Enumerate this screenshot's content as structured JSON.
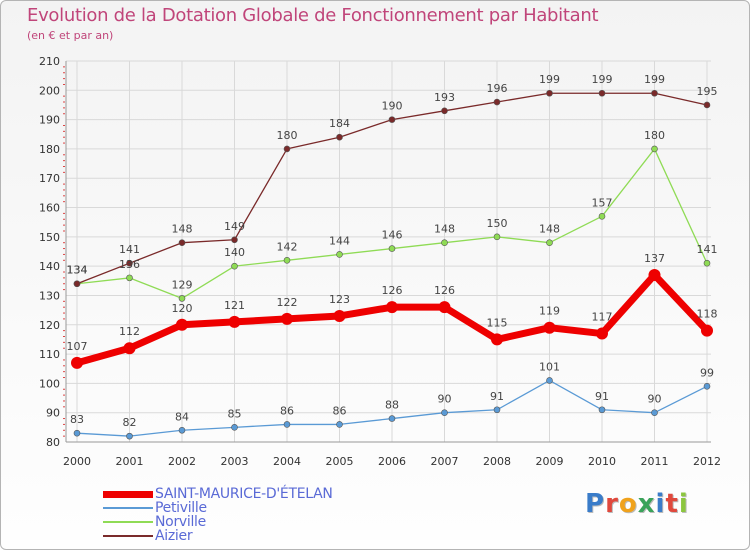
{
  "header": {
    "title": "Evolution de la Dotation Globale de Fonctionnement par Habitant",
    "subtitle": "(en € et par an)"
  },
  "logo": {
    "text": "Proxiti",
    "letter_colors": [
      "#3a7cc9",
      "#e0483c",
      "#f0a21c",
      "#3aa35a",
      "#3a7cc9",
      "#e0483c",
      "#8cc63f"
    ]
  },
  "chart_data": {
    "type": "line",
    "title": "Evolution de la Dotation Globale de Fonctionnement par Habitant",
    "subtitle": "(en € et par an)",
    "xlabel": "",
    "ylabel": "",
    "x": [
      "2000",
      "2001",
      "2002",
      "2003",
      "2004",
      "2005",
      "2006",
      "2007",
      "2008",
      "2009",
      "2010",
      "2011",
      "2012"
    ],
    "ylim": [
      80,
      210
    ],
    "yticks": [
      80,
      90,
      100,
      110,
      120,
      130,
      140,
      150,
      160,
      170,
      180,
      190,
      200,
      210
    ],
    "grid": true,
    "legend_position": "bottom-left",
    "series": [
      {
        "name": "SAINT-MAURICE-D'ÉTELAN",
        "color": "#ee0000",
        "emphasis": true,
        "values": [
          107,
          112,
          120,
          121,
          122,
          123,
          126,
          126,
          115,
          119,
          117,
          137,
          118
        ]
      },
      {
        "name": "Petiville",
        "color": "#5a9ad5",
        "values": [
          83,
          82,
          84,
          85,
          86,
          86,
          88,
          90,
          91,
          101,
          91,
          90,
          99
        ]
      },
      {
        "name": "Norville",
        "color": "#8fdb55",
        "values": [
          134,
          136,
          129,
          140,
          142,
          144,
          146,
          148,
          150,
          148,
          157,
          180,
          141
        ]
      },
      {
        "name": "Aizier",
        "color": "#7a2a2a",
        "values": [
          134,
          141,
          148,
          149,
          180,
          184,
          190,
          193,
          196,
          199,
          199,
          199,
          195
        ]
      }
    ]
  }
}
